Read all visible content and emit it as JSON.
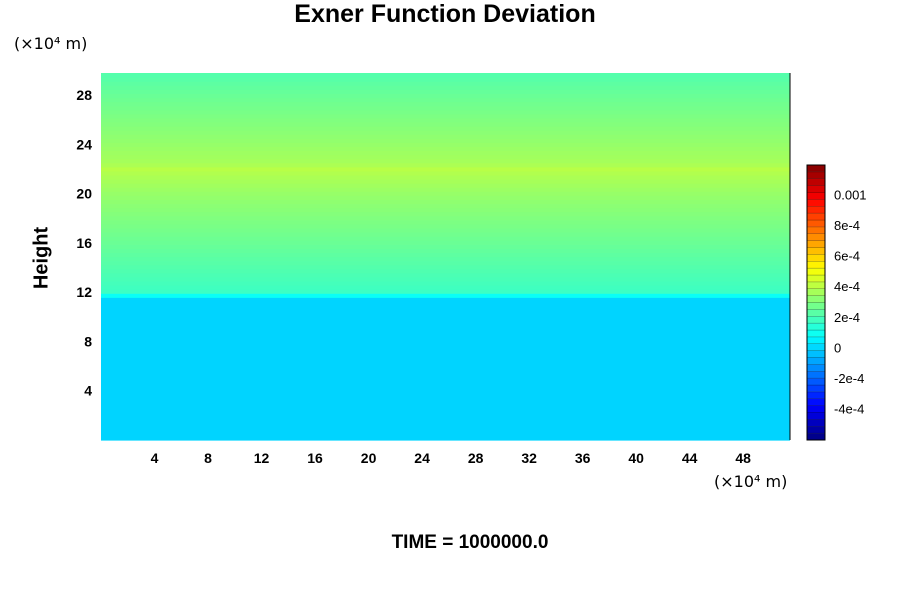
{
  "chart_data": {
    "type": "heatmap",
    "title": "Exner Function Deviation",
    "ylabel": "Height",
    "x_unit": "(×10⁴ m)",
    "y_unit": "(×10⁴ m)",
    "xlim": [
      0,
      51.5
    ],
    "ylim": [
      0,
      29.8
    ],
    "x_ticks": [
      "4",
      "8",
      "12",
      "16",
      "20",
      "24",
      "28",
      "32",
      "36",
      "40",
      "44",
      "48"
    ],
    "y_ticks": [
      "4",
      "8",
      "12",
      "16",
      "20",
      "24",
      "28"
    ],
    "colorbar": {
      "min": -0.0006,
      "max": 0.0012,
      "ticks": [
        {
          "value": 0.001,
          "label": "0.001"
        },
        {
          "value": 0.0008,
          "label": "8e-4"
        },
        {
          "value": 0.0006,
          "label": "6e-4"
        },
        {
          "value": 0.0004,
          "label": "4e-4"
        },
        {
          "value": 0.0002,
          "label": "2e-4"
        },
        {
          "value": 0,
          "label": "0"
        },
        {
          "value": -0.0002,
          "label": "-2e-4"
        },
        {
          "value": -0.0004,
          "label": "-4e-4"
        }
      ]
    },
    "profile": {
      "heights": [
        0,
        11.5,
        12,
        14,
        16,
        18,
        20,
        21.5,
        22,
        22.5,
        24,
        26,
        28,
        29.8
      ],
      "values": [
        0,
        0,
        0.00018,
        0.00022,
        0.00026,
        0.0003,
        0.00034,
        0.00038,
        0.0004,
        0.00037,
        0.00034,
        0.0003,
        0.00026,
        0.00022
      ]
    }
  },
  "footer": {
    "time_label": "TIME = 1000000.0"
  }
}
